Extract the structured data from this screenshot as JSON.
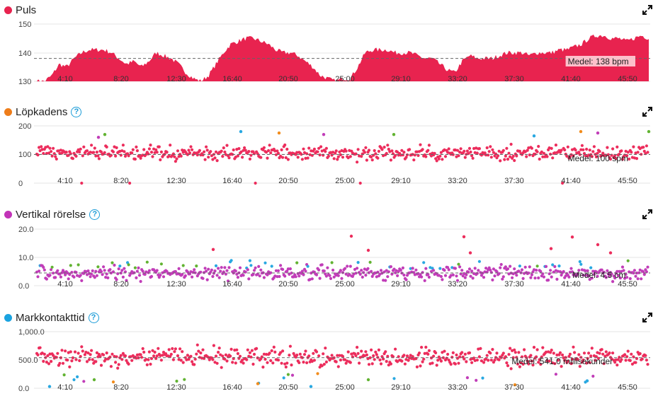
{
  "colors": {
    "heart": "#e8234f",
    "cadence_legend": "#ee7d1a",
    "vertical_legend": "#c233b8",
    "contact_legend": "#1aa3e0",
    "zone_red": "#ec2d5c",
    "zone_orange": "#f28c1c",
    "zone_green": "#62b332",
    "zone_blue": "#29a8e1",
    "zone_purple": "#c13db8",
    "avg_line": "#666666",
    "grid": "#e6e6e6"
  },
  "icons": {
    "expand": "expand-arrows-icon",
    "help": "question-circle-icon"
  },
  "x_labels": [
    "4:10",
    "8:20",
    "12:30",
    "16:40",
    "20:50",
    "25:00",
    "29:10",
    "33:20",
    "37:30",
    "41:40",
    "45:50"
  ],
  "panels": [
    {
      "id": "heart",
      "title": "Puls",
      "help": false,
      "legend_color": "#e8234f",
      "y_ticks": [
        "150",
        "140",
        "130"
      ],
      "avg_label": "Medel: 138 bpm"
    },
    {
      "id": "cadence",
      "title": "Löpkadens",
      "help": true,
      "help_glyph": "?",
      "legend_color": "#ee7d1a",
      "y_ticks": [
        "200",
        "100",
        "0"
      ],
      "avg_label": "Medel: 100 spm"
    },
    {
      "id": "vertical",
      "title": "Vertikal rörelse",
      "help": true,
      "help_glyph": "?",
      "legend_color": "#c233b8",
      "y_ticks": [
        "20.0",
        "10.0",
        "0.0"
      ],
      "avg_label": "Medel: 4.5 cm"
    },
    {
      "id": "contact",
      "title": "Markkontakttid",
      "help": true,
      "help_glyph": "?",
      "legend_color": "#1aa3e0",
      "y_ticks": [
        "1,000.0",
        "500.0",
        "0.0"
      ],
      "avg_label": "Medel: 541.0 millisekunder"
    }
  ],
  "chart_data": [
    {
      "type": "area",
      "title": "Puls",
      "ylim": [
        130,
        150
      ],
      "xlim": [
        0,
        2880
      ],
      "x_unit": "seconds",
      "average": 138,
      "profile": [
        130,
        130,
        132,
        136,
        135,
        138,
        140,
        141,
        141,
        141,
        140,
        138,
        136,
        137,
        135,
        137,
        140,
        139,
        138,
        136,
        133,
        131,
        130,
        132,
        136,
        140,
        143,
        144,
        145,
        145,
        144,
        143,
        141,
        140,
        140,
        139,
        137,
        135,
        132,
        131,
        130,
        131,
        131,
        135,
        140,
        141,
        141,
        141,
        140,
        140,
        140,
        139,
        138,
        138,
        136,
        134,
        133,
        137,
        139,
        138,
        138,
        138,
        139,
        140,
        140,
        140,
        139,
        140,
        140,
        140,
        141,
        141,
        142,
        143,
        145,
        146,
        146,
        145,
        145,
        144,
        145,
        146,
        145
      ]
    },
    {
      "type": "scatter",
      "title": "Löpkadens",
      "ylim": [
        0,
        200
      ],
      "xlim": [
        0,
        2880
      ],
      "average": 100,
      "typical_range": [
        80,
        130
      ],
      "outliers_high": [
        [
          290,
          160
        ],
        [
          320,
          170
        ],
        [
          960,
          180
        ],
        [
          1140,
          175
        ],
        [
          1350,
          170
        ],
        [
          1680,
          170
        ],
        [
          2340,
          165
        ],
        [
          2560,
          180
        ],
        [
          2640,
          175
        ],
        [
          2880,
          180
        ]
      ],
      "zero_points": 20
    },
    {
      "type": "scatter",
      "title": "Vertikal rörelse",
      "ylim": [
        0,
        20
      ],
      "xlim": [
        0,
        2880
      ],
      "average": 4.5,
      "typical_range": [
        2,
        7
      ],
      "outliers_high": [
        [
          830,
          12.8
        ],
        [
          1480,
          17.5
        ],
        [
          1560,
          12.5
        ],
        [
          2010,
          17.3
        ],
        [
          2040,
          11.6
        ],
        [
          2420,
          13.1
        ],
        [
          2520,
          17.2
        ],
        [
          2640,
          14.5
        ],
        [
          2700,
          11.6
        ]
      ]
    },
    {
      "type": "scatter",
      "title": "Markkontakttid",
      "ylim": [
        0,
        1000
      ],
      "xlim": [
        0,
        2880
      ],
      "average": 541,
      "typical_range": [
        380,
        720
      ],
      "outliers_low": [
        [
          60,
          30
        ],
        [
          270,
          150
        ],
        [
          1040,
          80
        ],
        [
          1290,
          30
        ],
        [
          1560,
          150
        ],
        [
          2250,
          60
        ],
        [
          2590,
          130
        ]
      ]
    }
  ]
}
